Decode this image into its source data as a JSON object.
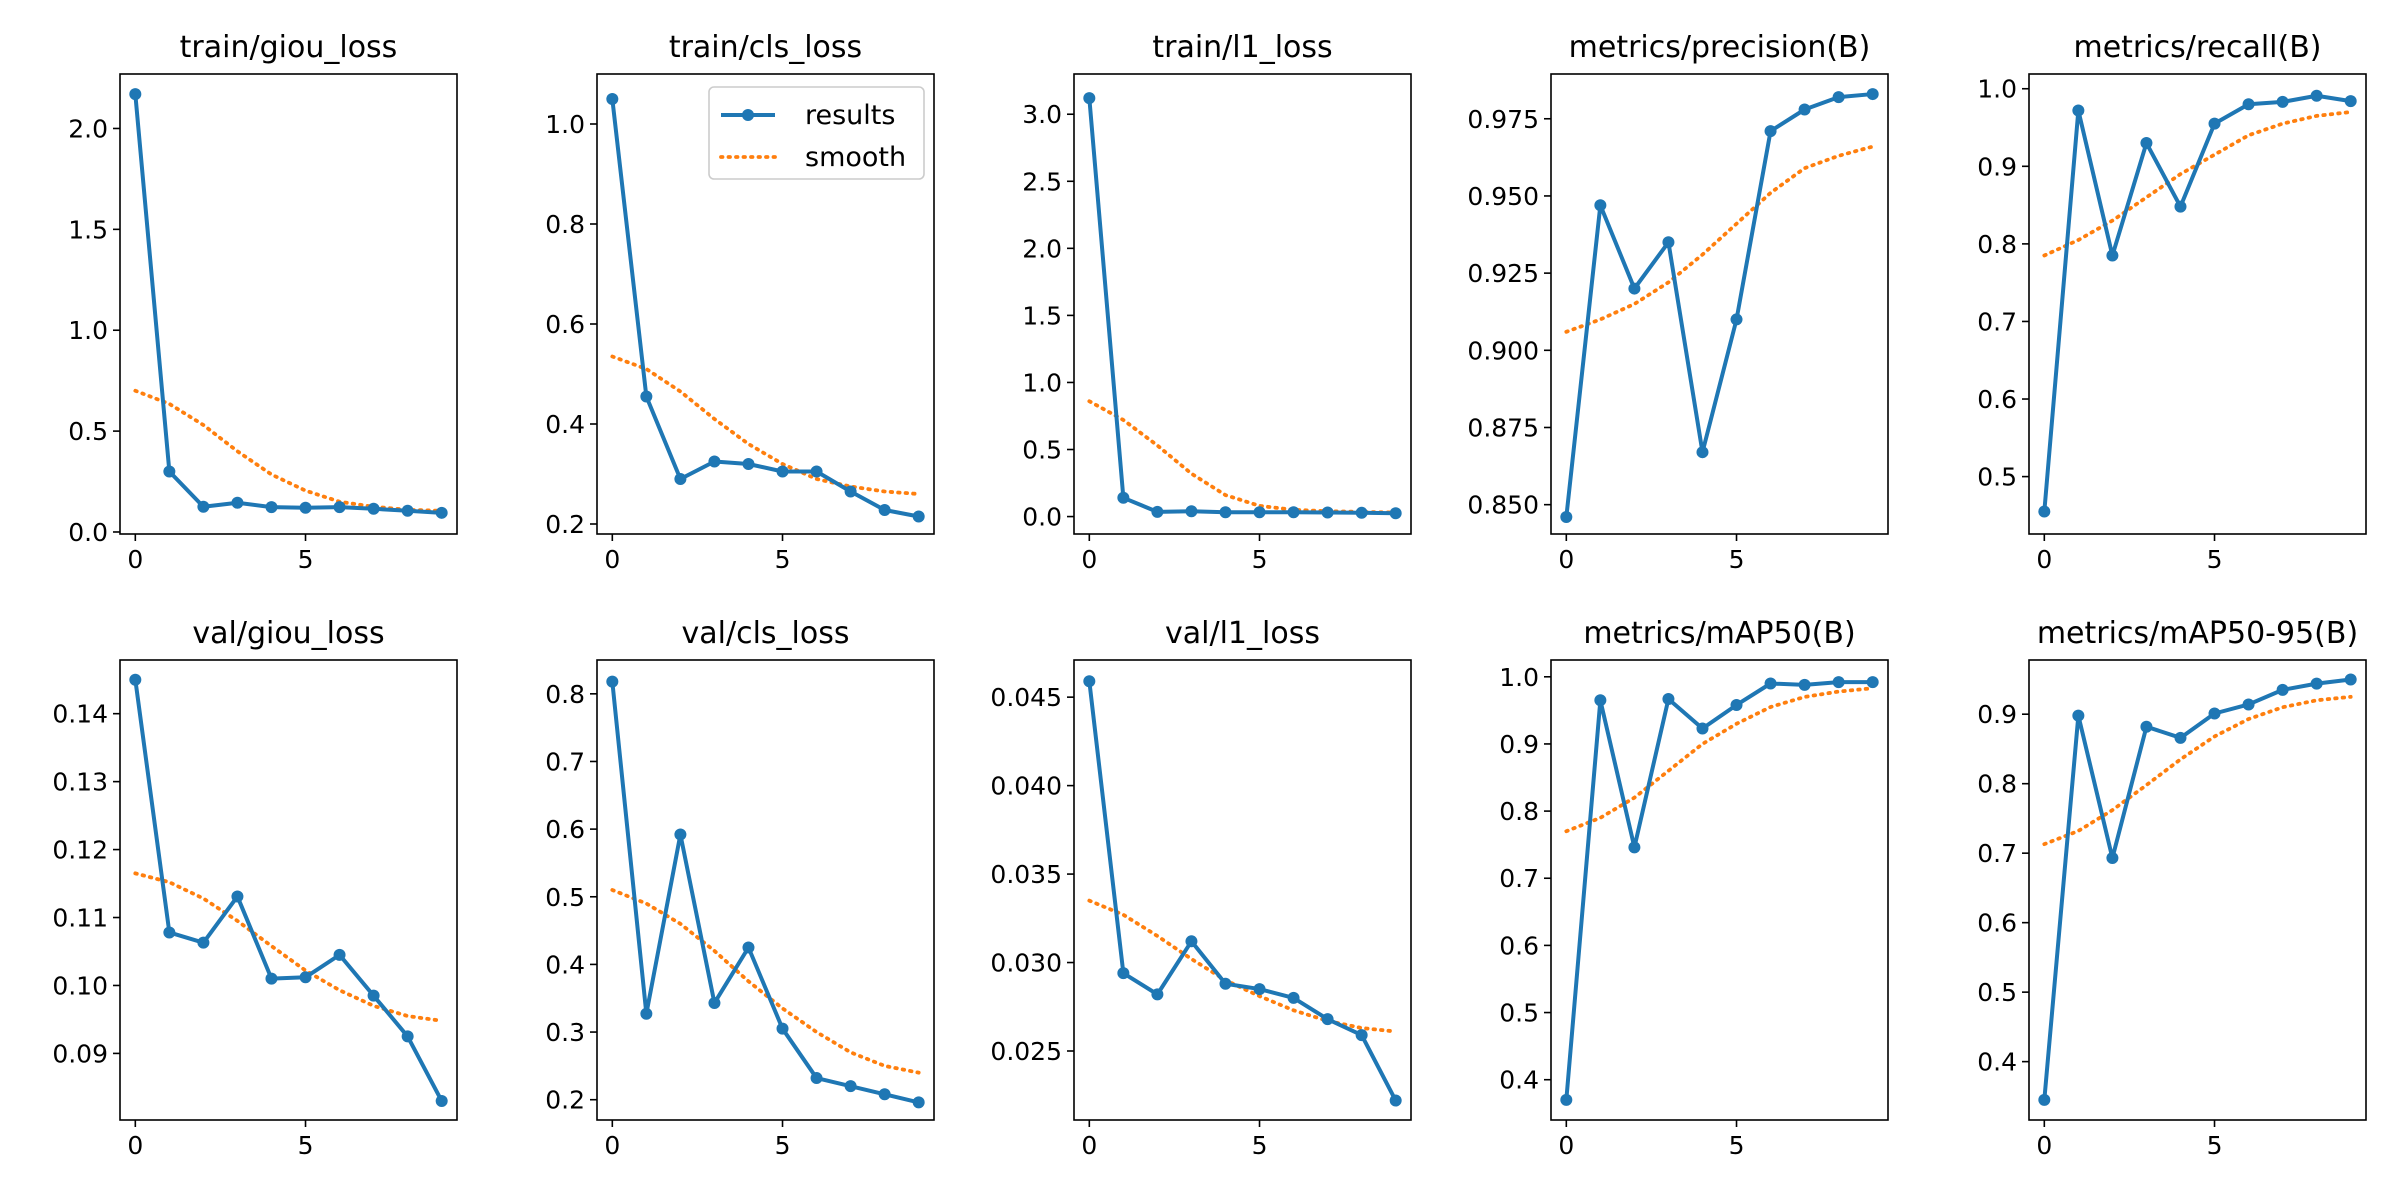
{
  "colors": {
    "results": "#1f77b4",
    "smooth": "#ff7f0e",
    "axes": "#000000"
  },
  "chart_data": [
    {
      "type": "line",
      "title": "train/giou_loss",
      "x": [
        0,
        1,
        2,
        3,
        4,
        5,
        6,
        7,
        8,
        9
      ],
      "xlim": [
        -0.45,
        9.45
      ],
      "ylim": [
        -0.01,
        2.27
      ],
      "xticks": [
        0,
        5
      ],
      "yticks": [
        0.0,
        0.5,
        1.0,
        1.5,
        2.0
      ],
      "yticklabels": [
        "0.0",
        "0.5",
        "1.0",
        "1.5",
        "2.0"
      ],
      "series": [
        {
          "name": "results",
          "values": [
            2.17,
            0.3,
            0.125,
            0.145,
            0.123,
            0.12,
            0.123,
            0.115,
            0.105,
            0.095
          ]
        },
        {
          "name": "smooth",
          "values": [
            0.7,
            0.635,
            0.53,
            0.4,
            0.285,
            0.205,
            0.15,
            0.125,
            0.11,
            0.105
          ]
        }
      ]
    },
    {
      "type": "line",
      "title": "train/cls_loss",
      "x": [
        0,
        1,
        2,
        3,
        4,
        5,
        6,
        7,
        8,
        9
      ],
      "xlim": [
        -0.45,
        9.45
      ],
      "ylim": [
        0.18,
        1.1
      ],
      "xticks": [
        0,
        5
      ],
      "yticks": [
        0.2,
        0.4,
        0.6,
        0.8,
        1.0
      ],
      "yticklabels": [
        "0.2",
        "0.4",
        "0.6",
        "0.8",
        "1.0"
      ],
      "legend": {
        "position": "top-right",
        "entries": [
          "results",
          "smooth"
        ]
      },
      "series": [
        {
          "name": "results",
          "values": [
            1.05,
            0.455,
            0.29,
            0.325,
            0.32,
            0.305,
            0.305,
            0.265,
            0.228,
            0.215
          ]
        },
        {
          "name": "smooth",
          "values": [
            0.535,
            0.51,
            0.465,
            0.41,
            0.36,
            0.32,
            0.29,
            0.275,
            0.265,
            0.26
          ]
        }
      ]
    },
    {
      "type": "line",
      "title": "train/l1_loss",
      "x": [
        0,
        1,
        2,
        3,
        4,
        5,
        6,
        7,
        8,
        9
      ],
      "xlim": [
        -0.45,
        9.45
      ],
      "ylim": [
        -0.13,
        3.3
      ],
      "xticks": [
        0,
        5
      ],
      "yticks": [
        0.0,
        0.5,
        1.0,
        1.5,
        2.0,
        2.5,
        3.0
      ],
      "yticklabels": [
        "0.0",
        "0.5",
        "1.0",
        "1.5",
        "2.0",
        "2.5",
        "3.0"
      ],
      "series": [
        {
          "name": "results",
          "values": [
            3.12,
            0.14,
            0.035,
            0.04,
            0.032,
            0.032,
            0.032,
            0.03,
            0.028,
            0.025
          ]
        },
        {
          "name": "smooth",
          "values": [
            0.86,
            0.72,
            0.53,
            0.32,
            0.16,
            0.08,
            0.05,
            0.04,
            0.035,
            0.03
          ]
        }
      ]
    },
    {
      "type": "line",
      "title": "metrics/precision(B)",
      "x": [
        0,
        1,
        2,
        3,
        4,
        5,
        6,
        7,
        8,
        9
      ],
      "xlim": [
        -0.45,
        9.45
      ],
      "ylim": [
        0.8405,
        0.9895
      ],
      "xticks": [
        0,
        5
      ],
      "yticks": [
        0.85,
        0.875,
        0.9,
        0.925,
        0.95,
        0.975
      ],
      "yticklabels": [
        "0.850",
        "0.875",
        "0.900",
        "0.925",
        "0.950",
        "0.975"
      ],
      "series": [
        {
          "name": "results",
          "values": [
            0.846,
            0.947,
            0.92,
            0.935,
            0.867,
            0.91,
            0.971,
            0.978,
            0.982,
            0.983
          ]
        },
        {
          "name": "smooth",
          "values": [
            0.906,
            0.91,
            0.915,
            0.922,
            0.931,
            0.941,
            0.951,
            0.959,
            0.963,
            0.966
          ]
        }
      ]
    },
    {
      "type": "line",
      "title": "metrics/recall(B)",
      "x": [
        0,
        1,
        2,
        3,
        4,
        5,
        6,
        7,
        8,
        9
      ],
      "xlim": [
        -0.45,
        9.45
      ],
      "ylim": [
        0.426,
        1.019
      ],
      "xticks": [
        0,
        5
      ],
      "yticks": [
        0.5,
        0.6,
        0.7,
        0.8,
        0.9,
        1.0
      ],
      "yticklabels": [
        "0.5",
        "0.6",
        "0.7",
        "0.8",
        "0.9",
        "1.0"
      ],
      "series": [
        {
          "name": "results",
          "values": [
            0.455,
            0.972,
            0.785,
            0.93,
            0.848,
            0.955,
            0.98,
            0.983,
            0.991,
            0.984
          ]
        },
        {
          "name": "smooth",
          "values": [
            0.785,
            0.805,
            0.83,
            0.86,
            0.89,
            0.915,
            0.94,
            0.955,
            0.965,
            0.97
          ]
        }
      ]
    },
    {
      "type": "line",
      "title": "val/giou_loss",
      "x": [
        0,
        1,
        2,
        3,
        4,
        5,
        6,
        7,
        8,
        9
      ],
      "xlim": [
        -0.45,
        9.45
      ],
      "ylim": [
        0.0802,
        0.1479
      ],
      "xticks": [
        0,
        5
      ],
      "yticks": [
        0.09,
        0.1,
        0.11,
        0.12,
        0.13,
        0.14
      ],
      "yticklabels": [
        "0.09",
        "0.10",
        "0.11",
        "0.12",
        "0.13",
        "0.14"
      ],
      "series": [
        {
          "name": "results",
          "values": [
            0.145,
            0.1078,
            0.1063,
            0.1131,
            0.101,
            0.1012,
            0.1045,
            0.0985,
            0.0925,
            0.083
          ]
        },
        {
          "name": "smooth",
          "values": [
            0.1165,
            0.1152,
            0.1128,
            0.1095,
            0.1058,
            0.1022,
            0.0993,
            0.097,
            0.0955,
            0.0948
          ]
        }
      ]
    },
    {
      "type": "line",
      "title": "val/cls_loss",
      "x": [
        0,
        1,
        2,
        3,
        4,
        5,
        6,
        7,
        8,
        9
      ],
      "xlim": [
        -0.45,
        9.45
      ],
      "ylim": [
        0.17,
        0.85
      ],
      "xticks": [
        0,
        5
      ],
      "yticks": [
        0.2,
        0.3,
        0.4,
        0.5,
        0.6,
        0.7,
        0.8
      ],
      "yticklabels": [
        "0.2",
        "0.3",
        "0.4",
        "0.5",
        "0.6",
        "0.7",
        "0.8"
      ],
      "series": [
        {
          "name": "results",
          "values": [
            0.818,
            0.327,
            0.592,
            0.343,
            0.425,
            0.305,
            0.232,
            0.22,
            0.208,
            0.196
          ]
        },
        {
          "name": "smooth",
          "values": [
            0.51,
            0.49,
            0.46,
            0.42,
            0.375,
            0.335,
            0.3,
            0.27,
            0.25,
            0.24
          ]
        }
      ]
    },
    {
      "type": "line",
      "title": "val/l1_loss",
      "x": [
        0,
        1,
        2,
        3,
        4,
        5,
        6,
        7,
        8,
        9
      ],
      "xlim": [
        -0.45,
        9.45
      ],
      "ylim": [
        0.0211,
        0.0471
      ],
      "xticks": [
        0,
        5
      ],
      "yticks": [
        0.025,
        0.03,
        0.035,
        0.04,
        0.045
      ],
      "yticklabels": [
        "0.025",
        "0.030",
        "0.035",
        "0.040",
        "0.045"
      ],
      "series": [
        {
          "name": "results",
          "values": [
            0.0459,
            0.0294,
            0.0282,
            0.0312,
            0.0288,
            0.0285,
            0.028,
            0.0268,
            0.0259,
            0.0222
          ]
        },
        {
          "name": "smooth",
          "values": [
            0.0335,
            0.0327,
            0.0315,
            0.0302,
            0.029,
            0.0281,
            0.0273,
            0.0267,
            0.0263,
            0.0261
          ]
        }
      ]
    },
    {
      "type": "line",
      "title": "metrics/mAP50(B)",
      "x": [
        0,
        1,
        2,
        3,
        4,
        5,
        6,
        7,
        8,
        9
      ],
      "xlim": [
        -0.45,
        9.45
      ],
      "ylim": [
        0.34,
        1.025
      ],
      "xticks": [
        0,
        5
      ],
      "yticks": [
        0.4,
        0.5,
        0.6,
        0.7,
        0.8,
        0.9,
        1.0
      ],
      "yticklabels": [
        "0.4",
        "0.5",
        "0.6",
        "0.7",
        "0.8",
        "0.9",
        "1.0"
      ],
      "series": [
        {
          "name": "results",
          "values": [
            0.37,
            0.965,
            0.746,
            0.967,
            0.923,
            0.958,
            0.99,
            0.988,
            0.992,
            0.992
          ]
        },
        {
          "name": "smooth",
          "values": [
            0.77,
            0.79,
            0.82,
            0.86,
            0.9,
            0.93,
            0.955,
            0.97,
            0.978,
            0.983
          ]
        }
      ]
    },
    {
      "type": "line",
      "title": "metrics/mAP50-95(B)",
      "x": [
        0,
        1,
        2,
        3,
        4,
        5,
        6,
        7,
        8,
        9
      ],
      "xlim": [
        -0.45,
        9.45
      ],
      "ylim": [
        0.316,
        0.978
      ],
      "xticks": [
        0,
        5
      ],
      "yticks": [
        0.4,
        0.5,
        0.6,
        0.7,
        0.8,
        0.9
      ],
      "yticklabels": [
        "0.4",
        "0.5",
        "0.6",
        "0.7",
        "0.8",
        "0.9"
      ],
      "series": [
        {
          "name": "results",
          "values": [
            0.345,
            0.898,
            0.693,
            0.882,
            0.866,
            0.901,
            0.914,
            0.935,
            0.944,
            0.95
          ]
        },
        {
          "name": "smooth",
          "values": [
            0.713,
            0.732,
            0.762,
            0.798,
            0.835,
            0.868,
            0.893,
            0.91,
            0.92,
            0.925
          ]
        }
      ]
    }
  ]
}
